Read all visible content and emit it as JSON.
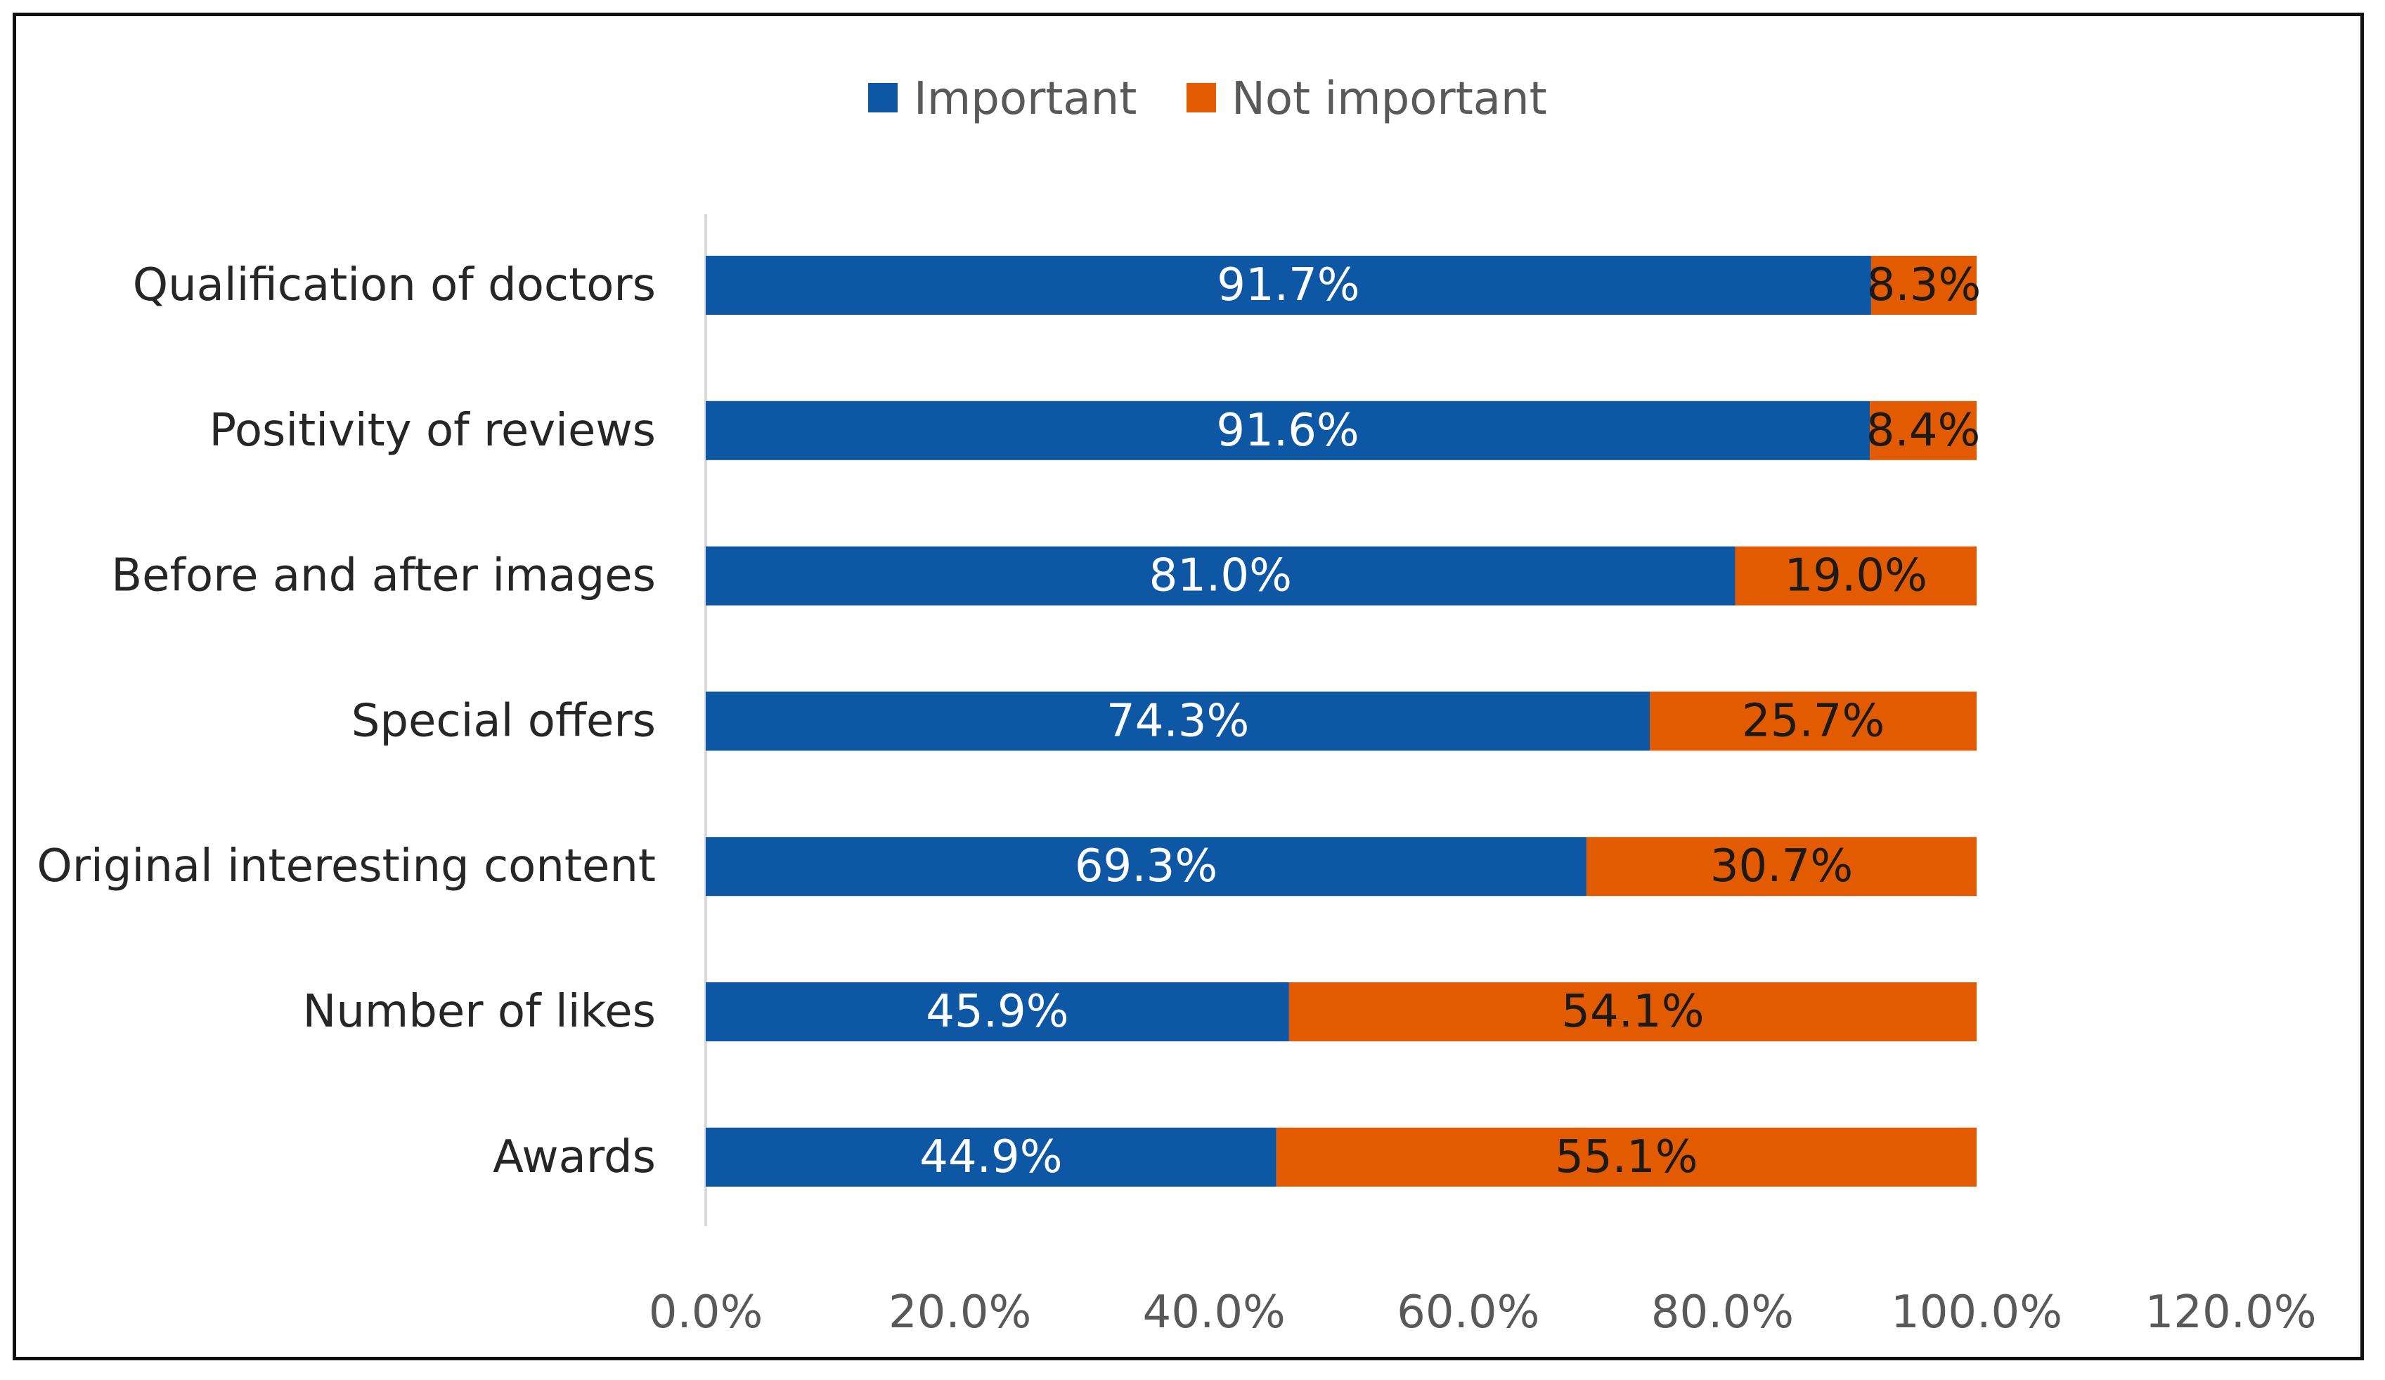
{
  "chart_data": {
    "type": "bar",
    "orientation": "horizontal",
    "stacked": true,
    "categories": [
      "Qualification of doctors",
      "Positivity of reviews",
      "Before and after images",
      "Special offers",
      "Original interesting content",
      "Number of likes",
      "Awards"
    ],
    "series": [
      {
        "name": "Important",
        "color": "#0E57A4",
        "label_color": "#ffffff",
        "values": [
          91.7,
          91.6,
          81.0,
          74.3,
          69.3,
          45.9,
          44.9
        ],
        "labels": [
          "91.7%",
          "91.6%",
          "81.0%",
          "74.3%",
          "69.3%",
          "45.9%",
          "44.9%"
        ]
      },
      {
        "name": "Not important",
        "color": "#E35B00",
        "label_color": "#1a1a1a",
        "values": [
          8.3,
          8.4,
          19.0,
          25.7,
          30.7,
          54.1,
          55.1
        ],
        "labels": [
          "8.3%",
          "8.4%",
          "19.0%",
          "25.7%",
          "30.7%",
          "54.1%",
          "55.1%"
        ]
      }
    ],
    "xlim": [
      0,
      120
    ],
    "xticks": [
      0,
      20,
      40,
      60,
      80,
      100,
      120
    ],
    "xtick_labels": [
      "0.0%",
      "20.0%",
      "40.0%",
      "60.0%",
      "80.0%",
      "100.0%",
      "120.0%"
    ],
    "grid": false,
    "legend_position": "top-center",
    "title": "",
    "xlabel": "",
    "ylabel": ""
  }
}
